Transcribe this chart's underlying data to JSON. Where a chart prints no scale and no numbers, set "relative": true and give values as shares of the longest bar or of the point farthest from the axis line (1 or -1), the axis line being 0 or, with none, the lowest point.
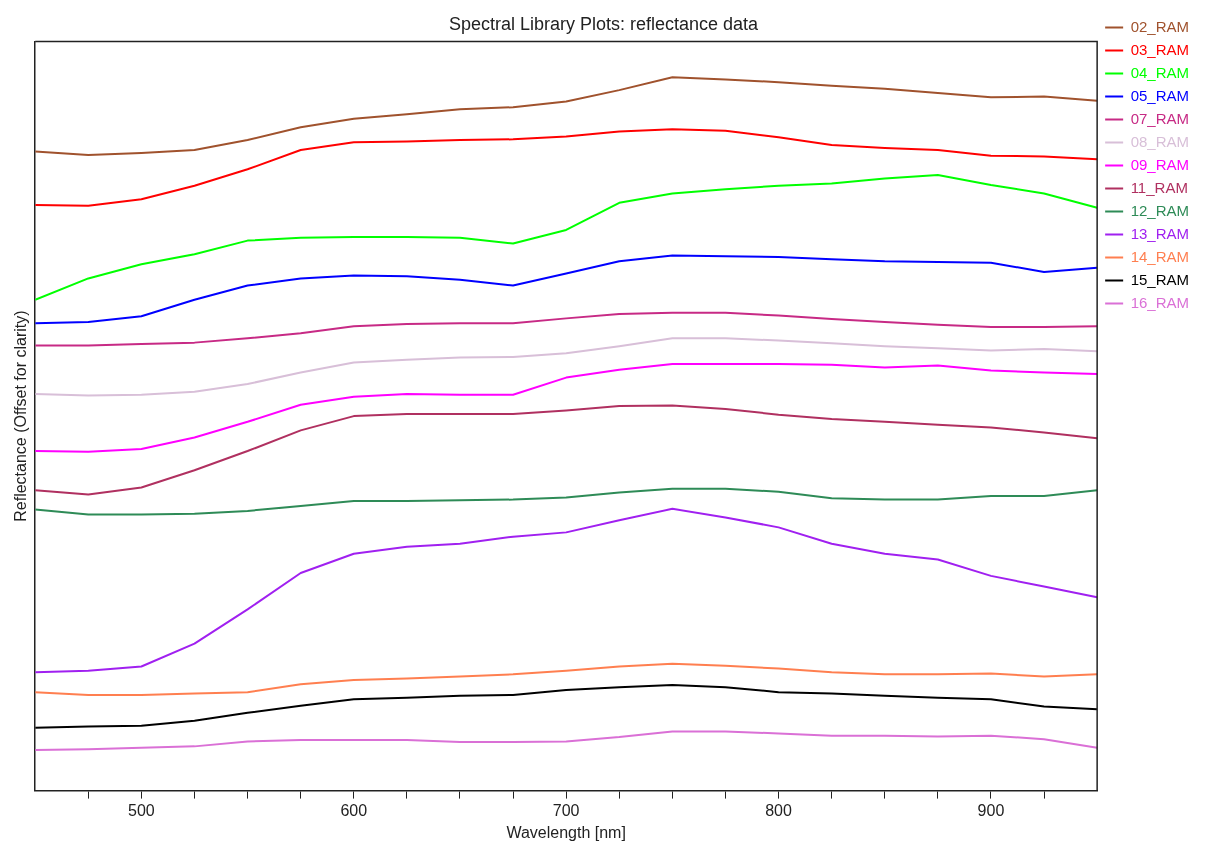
{
  "chart_data": {
    "type": "line",
    "title": "Spectral Library Plots: reflectance data",
    "xlabel": "Wavelength [nm]",
    "ylabel": "Reflectance (Offset for clarity)",
    "relative": true,
    "grid": false,
    "legend": "right",
    "marker": "none",
    "line_style": "solid",
    "x": [
      450,
      475,
      500,
      525,
      550,
      575,
      600,
      625,
      650,
      675,
      700,
      725,
      750,
      775,
      800,
      825,
      850,
      875,
      900,
      925,
      950
    ],
    "xlim": [
      450,
      950
    ],
    "xticks": [
      {
        "value": 475,
        "label": null
      },
      500,
      {
        "value": 525,
        "label": null
      },
      {
        "value": 550,
        "label": null
      },
      {
        "value": 575,
        "label": null
      },
      600,
      {
        "value": 625,
        "label": null
      },
      {
        "value": 650,
        "label": null
      },
      {
        "value": 675,
        "label": null
      },
      700,
      {
        "value": 725,
        "label": null
      },
      {
        "value": 750,
        "label": null
      },
      {
        "value": 775,
        "label": null
      },
      800,
      {
        "value": 825,
        "label": null
      },
      {
        "value": 850,
        "label": null
      },
      {
        "value": 875,
        "label": null
      },
      900,
      {
        "value": 925,
        "label": null
      }
    ],
    "series": [
      {
        "name": "02_RAM",
        "color": "#a0522d",
        "values": [
          0.896,
          0.891,
          0.894,
          0.898,
          0.912,
          0.93,
          0.942,
          0.948,
          0.955,
          0.958,
          0.966,
          0.982,
          1.0,
          0.997,
          0.993,
          0.988,
          0.984,
          0.978,
          0.972,
          0.973,
          0.967
        ]
      },
      {
        "name": "03_RAM",
        "color": "#ff0000",
        "values": [
          0.821,
          0.82,
          0.829,
          0.848,
          0.871,
          0.898,
          0.909,
          0.91,
          0.912,
          0.913,
          0.917,
          0.924,
          0.927,
          0.925,
          0.916,
          0.905,
          0.901,
          0.898,
          0.89,
          0.889,
          0.885
        ]
      },
      {
        "name": "04_RAM",
        "color": "#00ff00",
        "values": [
          0.688,
          0.718,
          0.738,
          0.752,
          0.771,
          0.775,
          0.776,
          0.776,
          0.775,
          0.767,
          0.786,
          0.824,
          0.837,
          0.843,
          0.848,
          0.851,
          0.858,
          0.863,
          0.849,
          0.837,
          0.817
        ]
      },
      {
        "name": "05_RAM",
        "color": "#0000ff",
        "values": [
          0.655,
          0.657,
          0.665,
          0.688,
          0.708,
          0.718,
          0.722,
          0.721,
          0.716,
          0.708,
          0.725,
          0.742,
          0.75,
          0.749,
          0.748,
          0.745,
          0.742,
          0.741,
          0.74,
          0.727,
          0.733
        ]
      },
      {
        "name": "07_RAM",
        "color": "#c72a85",
        "values": [
          0.624,
          0.624,
          0.626,
          0.628,
          0.634,
          0.641,
          0.651,
          0.654,
          0.655,
          0.655,
          0.662,
          0.668,
          0.67,
          0.67,
          0.666,
          0.661,
          0.657,
          0.653,
          0.65,
          0.65,
          0.651
        ]
      },
      {
        "name": "08_RAM",
        "color": "#d8bfd8",
        "values": [
          0.556,
          0.554,
          0.555,
          0.559,
          0.57,
          0.586,
          0.6,
          0.604,
          0.607,
          0.608,
          0.613,
          0.623,
          0.634,
          0.634,
          0.631,
          0.627,
          0.623,
          0.62,
          0.617,
          0.619,
          0.616
        ]
      },
      {
        "name": "09_RAM",
        "color": "#ff00ff",
        "values": [
          0.476,
          0.475,
          0.479,
          0.495,
          0.517,
          0.541,
          0.552,
          0.556,
          0.555,
          0.555,
          0.579,
          0.59,
          0.598,
          0.598,
          0.598,
          0.597,
          0.593,
          0.596,
          0.589,
          0.586,
          0.584
        ]
      },
      {
        "name": "11_RAM",
        "color": "#b03060",
        "values": [
          0.421,
          0.415,
          0.425,
          0.449,
          0.476,
          0.505,
          0.525,
          0.528,
          0.528,
          0.528,
          0.533,
          0.539,
          0.54,
          0.535,
          0.527,
          0.521,
          0.517,
          0.513,
          0.509,
          0.502,
          0.494
        ]
      },
      {
        "name": "12_RAM",
        "color": "#2e8b57",
        "values": [
          0.394,
          0.387,
          0.387,
          0.388,
          0.392,
          0.399,
          0.406,
          0.406,
          0.407,
          0.408,
          0.411,
          0.418,
          0.423,
          0.423,
          0.419,
          0.41,
          0.408,
          0.408,
          0.413,
          0.413,
          0.421
        ]
      },
      {
        "name": "13_RAM",
        "color": "#a020f0",
        "values": [
          0.166,
          0.168,
          0.174,
          0.206,
          0.254,
          0.305,
          0.332,
          0.342,
          0.346,
          0.356,
          0.362,
          0.379,
          0.395,
          0.383,
          0.369,
          0.346,
          0.332,
          0.324,
          0.301,
          0.286,
          0.271
        ]
      },
      {
        "name": "14_RAM",
        "color": "#ff7f50",
        "values": [
          0.138,
          0.134,
          0.134,
          0.136,
          0.138,
          0.149,
          0.155,
          0.157,
          0.16,
          0.163,
          0.168,
          0.174,
          0.178,
          0.175,
          0.171,
          0.166,
          0.163,
          0.163,
          0.164,
          0.16,
          0.163
        ]
      },
      {
        "name": "15_RAM",
        "color": "#000000",
        "values": [
          0.088,
          0.09,
          0.091,
          0.098,
          0.109,
          0.119,
          0.128,
          0.13,
          0.133,
          0.134,
          0.141,
          0.145,
          0.148,
          0.145,
          0.138,
          0.136,
          0.133,
          0.13,
          0.128,
          0.118,
          0.114
        ]
      },
      {
        "name": "16_RAM",
        "color": "#da70d6",
        "values": [
          0.057,
          0.058,
          0.06,
          0.062,
          0.069,
          0.071,
          0.071,
          0.071,
          0.068,
          0.068,
          0.069,
          0.075,
          0.083,
          0.083,
          0.08,
          0.077,
          0.077,
          0.076,
          0.077,
          0.072,
          0.06
        ]
      }
    ]
  }
}
